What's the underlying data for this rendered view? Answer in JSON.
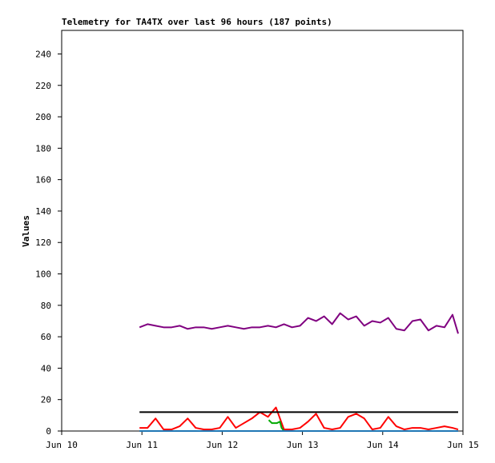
{
  "chart_data": {
    "type": "line",
    "title": "Telemetry for TA4TX over last 96 hours (187 points)",
    "y_label": "Values",
    "xlim": [
      10,
      15
    ],
    "xticks": [
      {
        "value": 10,
        "label": "Jun 10"
      },
      {
        "value": 11,
        "label": "Jun 11"
      },
      {
        "value": 12,
        "label": "Jun 12"
      },
      {
        "value": 13,
        "label": "Jun 13"
      },
      {
        "value": 14,
        "label": "Jun 14"
      },
      {
        "value": 15,
        "label": "Jun 15"
      }
    ],
    "ylim": [
      0,
      255
    ],
    "yticks": [
      0,
      20,
      40,
      60,
      80,
      100,
      120,
      140,
      160,
      180,
      200,
      220,
      240
    ],
    "series": [
      {
        "color": "#800080",
        "x": [
          10.97,
          11.07,
          11.17,
          11.27,
          11.37,
          11.47,
          11.57,
          11.67,
          11.77,
          11.87,
          11.97,
          12.07,
          12.17,
          12.27,
          12.37,
          12.47,
          12.57,
          12.67,
          12.77,
          12.87,
          12.97,
          13.07,
          13.17,
          13.27,
          13.37,
          13.47,
          13.57,
          13.67,
          13.77,
          13.87,
          13.97,
          14.07,
          14.17,
          14.27,
          14.37,
          14.47,
          14.57,
          14.67,
          14.77,
          14.87,
          14.94
        ],
        "values": [
          66,
          68,
          67,
          66,
          66,
          67,
          65,
          66,
          66,
          65,
          66,
          67,
          66,
          65,
          66,
          66,
          67,
          66,
          68,
          66,
          67,
          72,
          70,
          73,
          68,
          75,
          71,
          73,
          67,
          70,
          69,
          72,
          65,
          64,
          70,
          71,
          64,
          67,
          66,
          74,
          62
        ]
      },
      {
        "color": "#ff0000",
        "x": [
          10.97,
          11.07,
          11.17,
          11.27,
          11.37,
          11.47,
          11.57,
          11.67,
          11.77,
          11.87,
          11.97,
          12.07,
          12.17,
          12.27,
          12.37,
          12.47,
          12.57,
          12.67,
          12.77,
          12.87,
          12.97,
          13.07,
          13.17,
          13.27,
          13.37,
          13.47,
          13.57,
          13.67,
          13.77,
          13.87,
          13.97,
          14.07,
          14.17,
          14.27,
          14.37,
          14.47,
          14.57,
          14.67,
          14.77,
          14.87,
          14.94
        ],
        "values": [
          2,
          2,
          8,
          1,
          1,
          3,
          8,
          2,
          1,
          1,
          2,
          9,
          2,
          5,
          8,
          12,
          9,
          15,
          1,
          1,
          2,
          6,
          11,
          2,
          1,
          2,
          9,
          11,
          8,
          1,
          2,
          9,
          3,
          1,
          2,
          2,
          1,
          2,
          3,
          2,
          1
        ]
      },
      {
        "color": "#000000",
        "x": [
          10.97,
          14.94
        ],
        "values": [
          12,
          12
        ]
      },
      {
        "color": "#00aa00",
        "x": [
          12.58,
          12.62,
          12.68,
          12.72,
          12.74,
          12.77
        ],
        "values": [
          7,
          5,
          5,
          6,
          2,
          0
        ]
      },
      {
        "color": "#1f77b4",
        "x": [
          10.97,
          14.94
        ],
        "values": [
          0,
          0
        ]
      }
    ]
  }
}
